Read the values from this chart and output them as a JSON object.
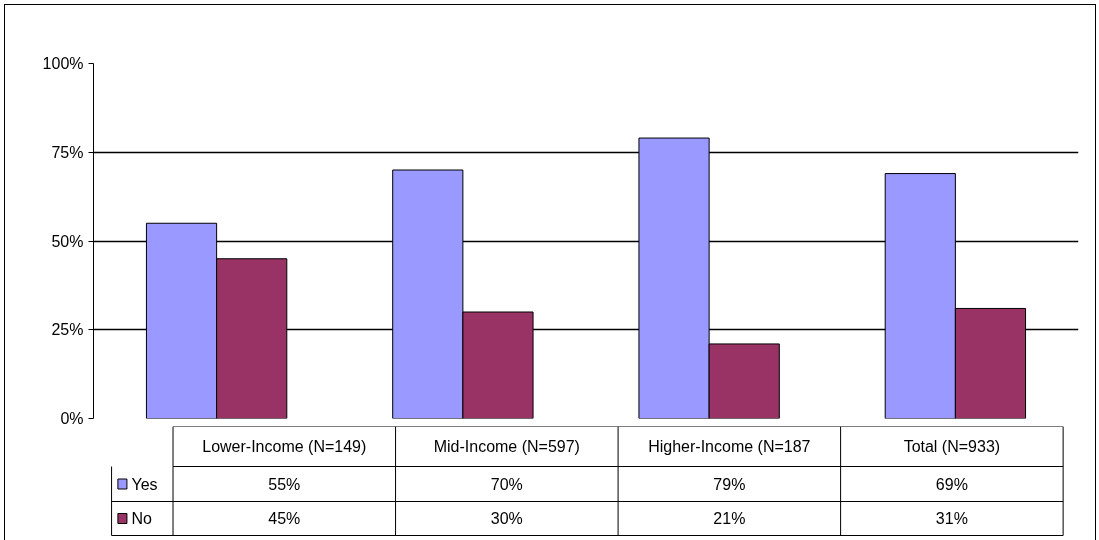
{
  "chart_data": {
    "type": "bar",
    "categories": [
      "Lower-Income (N=149)",
      "Mid-Income (N=597)",
      "Higher-Income (N=187",
      "Total (N=933)"
    ],
    "series": [
      {
        "name": "Yes",
        "color": "#9999ff",
        "values": [
          55,
          70,
          79,
          69
        ],
        "value_labels": [
          "55%",
          "70%",
          "79%",
          "69%"
        ]
      },
      {
        "name": "No",
        "color": "#993366",
        "values": [
          45,
          30,
          21,
          31
        ],
        "value_labels": [
          "45%",
          "30%",
          "21%",
          "31%"
        ]
      }
    ],
    "ylim": [
      0,
      100
    ],
    "yticks": [
      {
        "value": 0,
        "label": "0%"
      },
      {
        "value": 25,
        "label": "25%"
      },
      {
        "value": 50,
        "label": "50%"
      },
      {
        "value": 75,
        "label": "75%"
      },
      {
        "value": 100,
        "label": "100%"
      }
    ],
    "grid": "y",
    "legend": "bottom"
  }
}
